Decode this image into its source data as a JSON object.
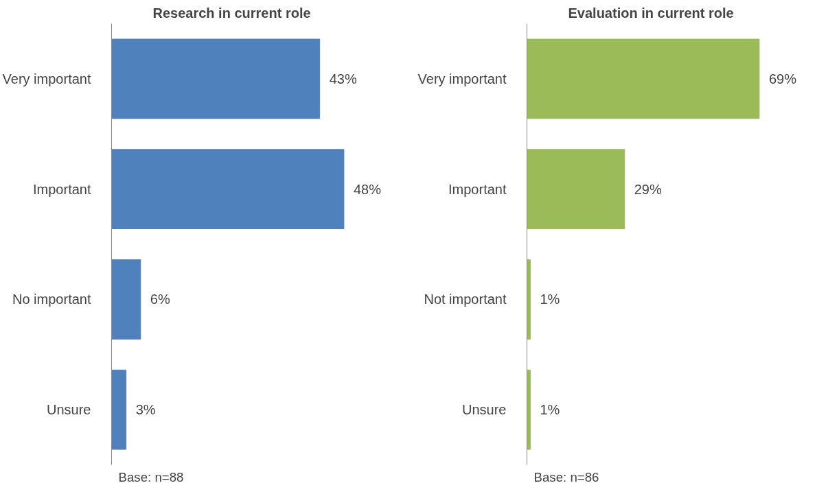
{
  "chart_data": [
    {
      "type": "bar",
      "orientation": "horizontal",
      "title": "Research in current role",
      "categories": [
        "Very important",
        "Important",
        "No important",
        "Unsure"
      ],
      "values": [
        43,
        48,
        6,
        3
      ],
      "color": "#4f81bd",
      "value_labels": [
        "43%",
        "48%",
        "6%",
        "3%"
      ],
      "annotations": [
        "Base: n=88"
      ]
    },
    {
      "type": "bar",
      "orientation": "horizontal",
      "title": "Evaluation in current role",
      "categories": [
        "Very important",
        "Important",
        "Not important",
        "Unsure"
      ],
      "values": [
        69,
        29,
        1,
        1
      ],
      "color": "#9bbb59",
      "value_labels": [
        "69%",
        "29%",
        "1%",
        "1%"
      ],
      "annotations": [
        "Base: n=86"
      ]
    }
  ]
}
